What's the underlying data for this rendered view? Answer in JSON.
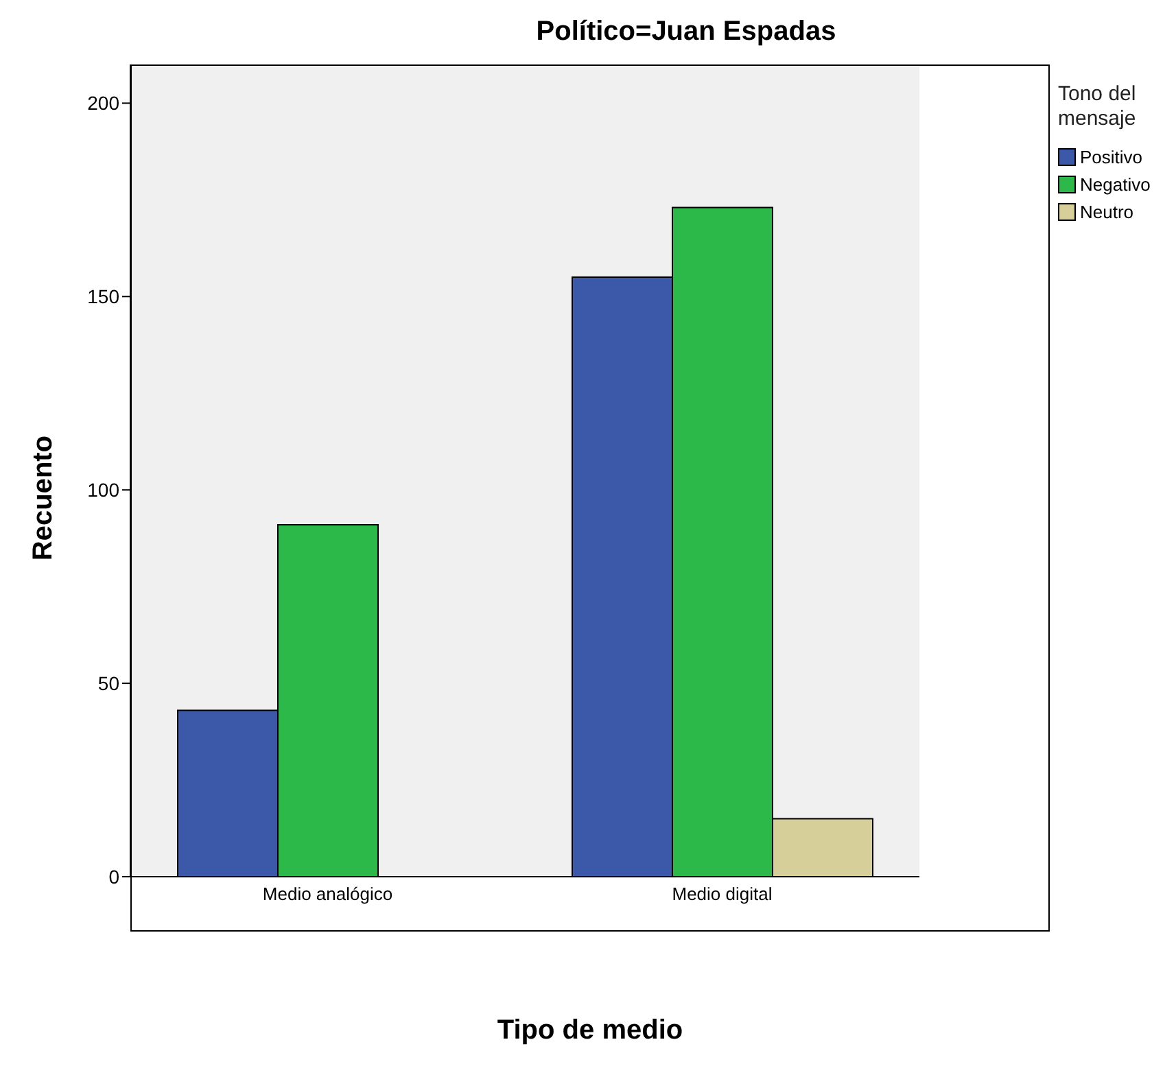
{
  "chart_data": {
    "type": "bar",
    "title": "Político=Juan Espadas",
    "xlabel": "Tipo de medio",
    "ylabel": "Recuento",
    "legend_title": "Tono del mensaje",
    "categories": [
      "Medio analógico",
      "Medio digital"
    ],
    "series": [
      {
        "name": "Positivo",
        "color": "#3c58a8",
        "values": [
          43,
          155
        ]
      },
      {
        "name": "Negativo",
        "color": "#2db84a",
        "values": [
          91,
          173
        ]
      },
      {
        "name": "Neutro",
        "color": "#d6cf9a",
        "values": [
          0,
          15
        ]
      }
    ],
    "ylim": [
      0,
      210
    ],
    "yticks": [
      0,
      50,
      100,
      150,
      200
    ],
    "grid": false,
    "legend": "top right"
  }
}
